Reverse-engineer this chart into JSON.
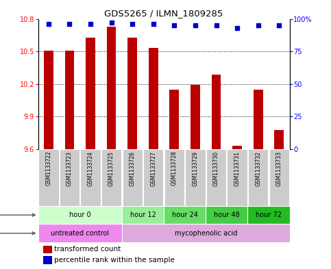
{
  "title": "GDS5265 / ILMN_1809285",
  "samples": [
    "GSM1133722",
    "GSM1133723",
    "GSM1133724",
    "GSM1133725",
    "GSM1133726",
    "GSM1133727",
    "GSM1133728",
    "GSM1133729",
    "GSM1133730",
    "GSM1133731",
    "GSM1133732",
    "GSM1133733"
  ],
  "bar_values": [
    10.51,
    10.51,
    10.63,
    10.73,
    10.63,
    10.53,
    10.15,
    10.19,
    10.29,
    9.63,
    10.15,
    9.78
  ],
  "bar_bottom": 9.6,
  "percentile_values": [
    96,
    96,
    96,
    97,
    96,
    96,
    95,
    95,
    95,
    93,
    95,
    95
  ],
  "bar_color": "#bb0000",
  "dot_color": "#0000cc",
  "ylim_left": [
    9.6,
    10.8
  ],
  "ylim_right": [
    0,
    100
  ],
  "yticks_left": [
    9.6,
    9.9,
    10.2,
    10.5,
    10.8
  ],
  "yticks_right": [
    0,
    25,
    50,
    75,
    100
  ],
  "ytick_labels_left": [
    "9.6",
    "9.9",
    "10.2",
    "10.5",
    "10.8"
  ],
  "ytick_labels_right": [
    "0",
    "25",
    "50",
    "75",
    "100%"
  ],
  "grid_values": [
    9.9,
    10.2,
    10.5
  ],
  "time_groups": [
    {
      "label": "hour 0",
      "start": 0,
      "end": 4,
      "color": "#ccffcc"
    },
    {
      "label": "hour 12",
      "start": 4,
      "end": 6,
      "color": "#99ee99"
    },
    {
      "label": "hour 24",
      "start": 6,
      "end": 8,
      "color": "#66dd66"
    },
    {
      "label": "hour 48",
      "start": 8,
      "end": 10,
      "color": "#44cc44"
    },
    {
      "label": "hour 72",
      "start": 10,
      "end": 12,
      "color": "#22bb22"
    }
  ],
  "agent_groups": [
    {
      "label": "untreated control",
      "start": 0,
      "end": 4,
      "color": "#ee88ee"
    },
    {
      "label": "mycophenolic acid",
      "start": 4,
      "end": 12,
      "color": "#ddaadd"
    }
  ],
  "legend_bar_label": "transformed count",
  "legend_dot_label": "percentile rank within the sample",
  "bg_color": "#ffffff",
  "sample_box_color": "#cccccc",
  "n_samples": 12
}
